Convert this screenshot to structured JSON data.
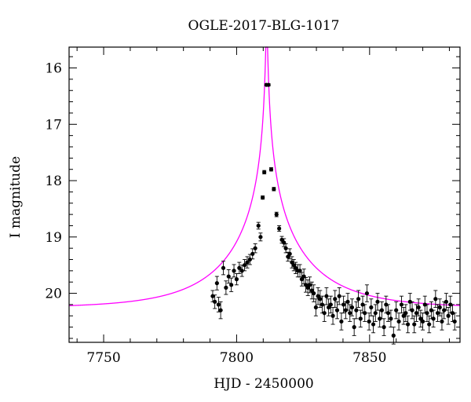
{
  "chart_data": {
    "type": "scatter",
    "title": "OGLE-2017-BLG-1017",
    "xlabel": "HJD - 2450000",
    "ylabel": "I magnitude",
    "xlim": [
      7737,
      7884
    ],
    "ylim": [
      20.87,
      15.63
    ],
    "y_inverted": true,
    "x_ticks": [
      7750,
      7800,
      7850
    ],
    "y_ticks": [
      16,
      17,
      18,
      19,
      20
    ],
    "grid": false,
    "legend": "none",
    "model_color": "#ff00ff",
    "point_color": "#000000",
    "model_curve": {
      "t0": 7811.3,
      "u0": 0.0095,
      "tE": 32,
      "baseline_mag": 20.26
    },
    "series": [
      {
        "type": "scatter",
        "x": [
          7791.0,
          7791.8,
          7792.6,
          7793.2,
          7794.0,
          7795.0,
          7796.0,
          7797.0,
          7798.0,
          7799.0,
          7800.0,
          7801.0,
          7802.0,
          7803.0,
          7804.0,
          7805.0,
          7806.0,
          7807.0,
          7808.2,
          7809.0,
          7809.8,
          7810.4,
          7811.2,
          7812.0,
          7813.0,
          7814.0,
          7815.0,
          7816.0,
          7817.0,
          7817.8,
          7818.5,
          7819.3,
          7820.0,
          7820.8,
          7821.5,
          7822.2,
          7823.0,
          7823.8,
          7824.5,
          7825.3,
          7826.0,
          7826.8,
          7827.5,
          7828.3,
          7829.0,
          7829.8,
          7830.6,
          7831.4,
          7832.2,
          7833.0,
          7833.8,
          7834.6,
          7835.4,
          7836.2,
          7837.0,
          7837.8,
          7838.6,
          7839.4,
          7840.2,
          7841.0,
          7841.8,
          7842.6,
          7843.4,
          7844.2,
          7845.0,
          7845.8,
          7846.6,
          7847.4,
          7848.2,
          7849.0,
          7849.8,
          7850.6,
          7851.4,
          7852.2,
          7853.0,
          7853.8,
          7854.6,
          7855.4,
          7856.2,
          7857.0,
          7858.0,
          7859.0,
          7860.0,
          7861.0,
          7862.0,
          7862.8,
          7863.6,
          7864.4,
          7865.2,
          7866.0,
          7866.8,
          7867.6,
          7868.4,
          7869.2,
          7870.0,
          7870.8,
          7871.6,
          7872.4,
          7873.2,
          7874.0,
          7874.8,
          7875.6,
          7876.4,
          7877.2,
          7878.0,
          7878.8,
          7879.6,
          7880.4,
          7881.2,
          7882.0
        ],
        "y": [
          20.05,
          20.15,
          19.82,
          20.2,
          20.3,
          19.55,
          19.9,
          19.7,
          19.85,
          19.6,
          19.75,
          19.55,
          19.6,
          19.5,
          19.45,
          19.4,
          19.3,
          19.2,
          18.8,
          19.0,
          18.3,
          17.85,
          16.3,
          16.3,
          17.8,
          18.15,
          18.6,
          18.85,
          19.05,
          19.1,
          19.2,
          19.35,
          19.3,
          19.45,
          19.5,
          19.55,
          19.6,
          19.6,
          19.75,
          19.7,
          19.85,
          19.9,
          19.85,
          19.95,
          20.0,
          20.25,
          20.05,
          20.1,
          20.2,
          20.35,
          20.05,
          20.25,
          20.2,
          20.4,
          20.1,
          20.3,
          20.05,
          20.5,
          20.2,
          20.3,
          20.15,
          20.35,
          20.25,
          20.6,
          20.3,
          20.1,
          20.45,
          20.2,
          20.35,
          20.0,
          20.5,
          20.25,
          20.55,
          20.35,
          20.15,
          20.45,
          20.3,
          20.6,
          20.2,
          20.35,
          20.45,
          20.75,
          20.3,
          20.5,
          20.2,
          20.4,
          20.35,
          20.55,
          20.15,
          20.3,
          20.55,
          20.35,
          20.25,
          20.45,
          20.5,
          20.2,
          20.35,
          20.55,
          20.3,
          20.45,
          20.1,
          20.35,
          20.25,
          20.5,
          20.3,
          20.15,
          20.4,
          20.2,
          20.35,
          20.5
        ],
        "err": [
          0.1,
          0.12,
          0.12,
          0.13,
          0.15,
          0.12,
          0.12,
          0.12,
          0.12,
          0.11,
          0.1,
          0.1,
          0.1,
          0.1,
          0.1,
          0.09,
          0.09,
          0.08,
          0.06,
          0.07,
          0.03,
          0.03,
          0.02,
          0.02,
          0.03,
          0.03,
          0.04,
          0.05,
          0.06,
          0.07,
          0.08,
          0.08,
          0.09,
          0.1,
          0.1,
          0.1,
          0.11,
          0.11,
          0.12,
          0.13,
          0.13,
          0.14,
          0.14,
          0.15,
          0.15,
          0.15,
          0.15,
          0.15,
          0.15,
          0.15,
          0.15,
          0.15,
          0.15,
          0.15,
          0.15,
          0.15,
          0.15,
          0.15,
          0.15,
          0.15,
          0.15,
          0.15,
          0.15,
          0.15,
          0.15,
          0.15,
          0.15,
          0.15,
          0.15,
          0.15,
          0.15,
          0.15,
          0.15,
          0.15,
          0.15,
          0.15,
          0.15,
          0.15,
          0.15,
          0.15,
          0.15,
          0.15,
          0.15,
          0.15,
          0.15,
          0.15,
          0.15,
          0.15,
          0.15,
          0.15,
          0.15,
          0.15,
          0.15,
          0.15,
          0.15,
          0.15,
          0.15,
          0.15,
          0.15,
          0.15,
          0.15,
          0.15,
          0.15,
          0.15,
          0.15,
          0.15,
          0.15,
          0.15,
          0.15,
          0.15
        ]
      }
    ]
  }
}
